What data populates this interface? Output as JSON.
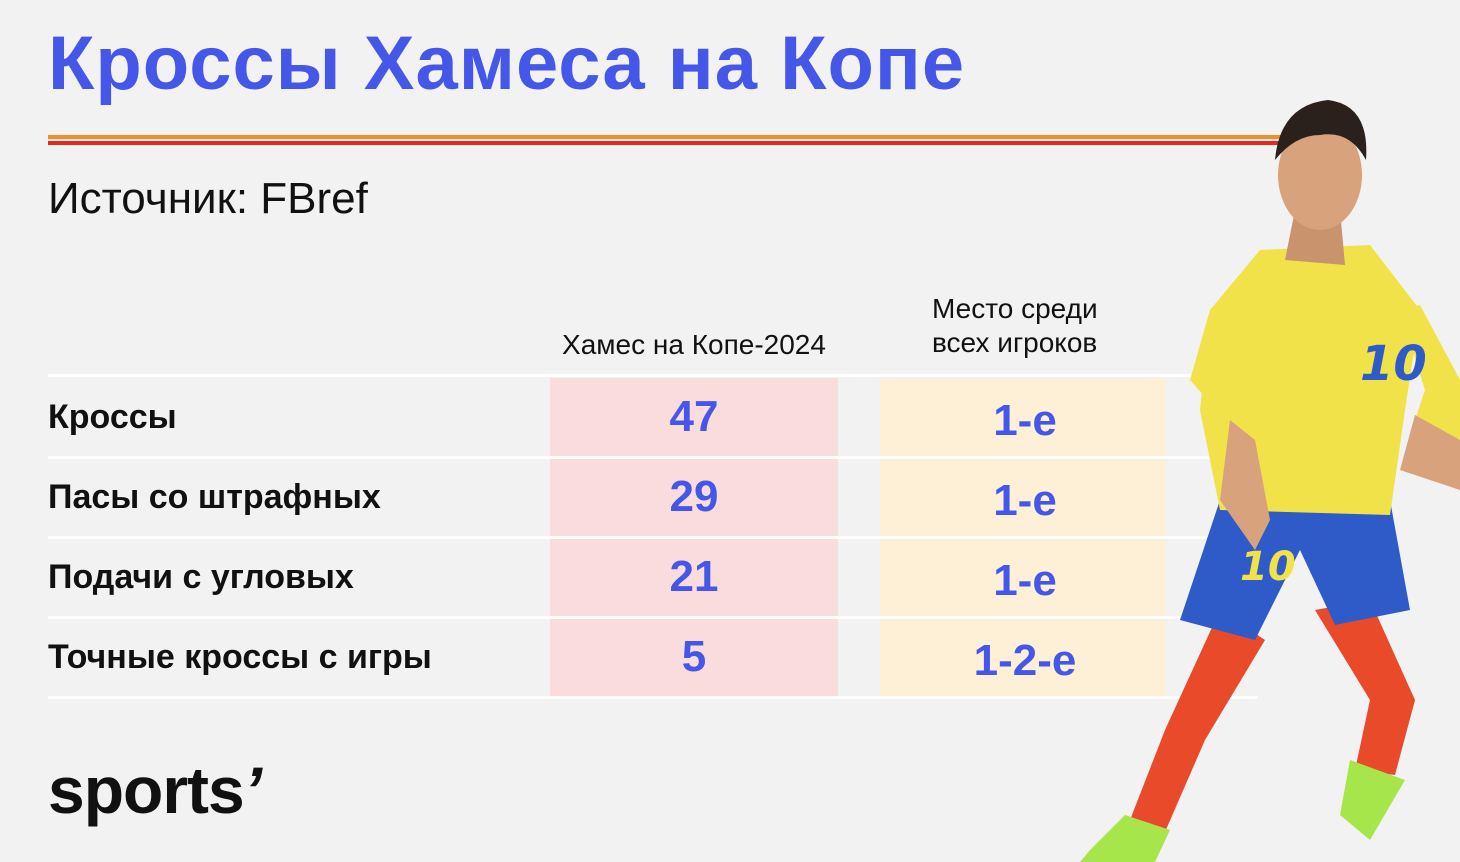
{
  "title": "Кроссы Хамеса на Копе",
  "source": "Источник: FBref",
  "colors": {
    "accent": "#4457e8",
    "orange_rule": "#f28d2c",
    "red_rule": "#e8281e",
    "col1_bg": "#fadcdc",
    "col2_bg": "#fdf0d7"
  },
  "chart_data": {
    "type": "table",
    "columns": [
      "Хамес на Копе-2024",
      "Место среди\nвсех игроков"
    ],
    "rows": [
      {
        "label": "Кроссы",
        "value": 47,
        "rank": "1-е"
      },
      {
        "label": "Пасы со штрафных",
        "value": 29,
        "rank": "1-е"
      },
      {
        "label": "Подачи с угловых",
        "value": 21,
        "rank": "1-е"
      },
      {
        "label": "Точные кроссы с игры",
        "value": 5,
        "rank": "1-2-е"
      }
    ]
  },
  "logo": {
    "text": "sports",
    "mark": "’"
  },
  "player_image": {
    "icon": "football-player-icon"
  }
}
